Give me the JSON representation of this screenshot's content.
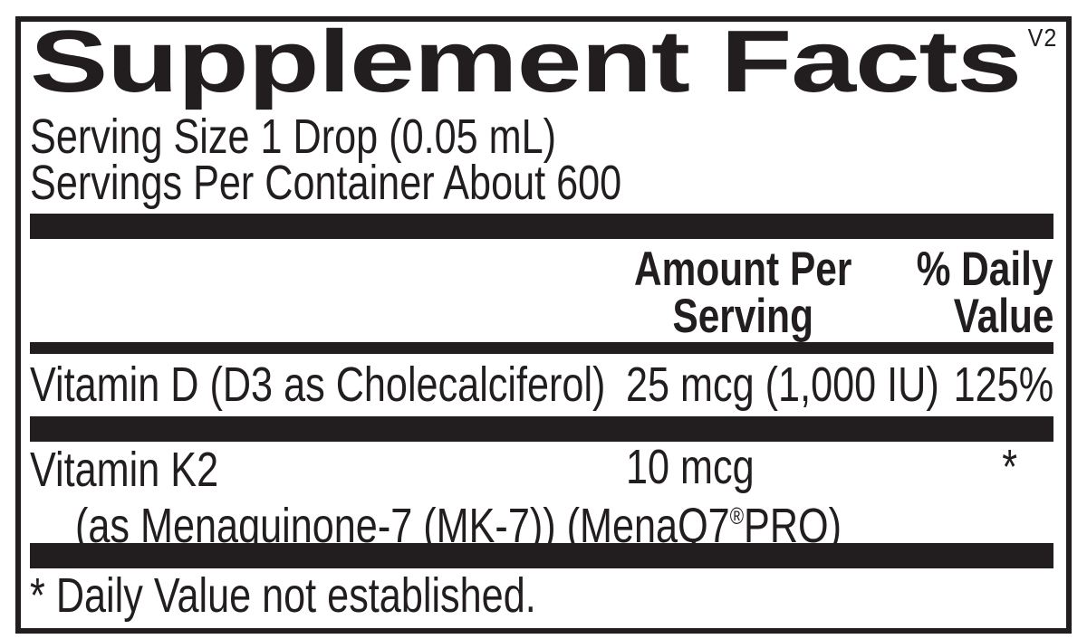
{
  "version_tag": "V2",
  "title": "Supplement Facts",
  "serving_info": {
    "serving_size": "Serving Size 1 Drop (0.05 mL)",
    "servings_per_container": "Servings Per Container About 600"
  },
  "columns": {
    "amount_line1": "Amount Per",
    "amount_line2": "Serving",
    "dv_line1": "% Daily",
    "dv_line2": "Value"
  },
  "nutrients": [
    {
      "name": "Vitamin D (D3 as Cholecalciferol)",
      "amount": "25 mcg (1,000 IU)",
      "daily_value": "125%"
    },
    {
      "name": "Vitamin K2",
      "detail_pre": "(as Menaquinone-7 (MK-7)) (MenaQ7",
      "reg_mark": "®",
      "detail_post": "PRO)",
      "amount": "10 mcg",
      "daily_value": "*"
    }
  ],
  "footnote": "* Daily Value not established.",
  "colors": {
    "ink": "#221e1f",
    "background": "#ffffff"
  }
}
